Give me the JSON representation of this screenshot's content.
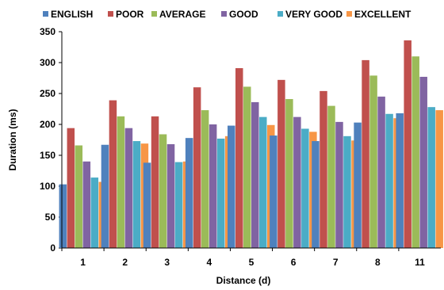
{
  "chart_data": {
    "type": "bar",
    "categories": [
      "1",
      "2",
      "3",
      "4",
      "5",
      "6",
      "7",
      "8",
      "11"
    ],
    "series": [
      {
        "name": "ENGLISH",
        "color": "#4F81BD",
        "values": [
          103,
          167,
          138,
          178,
          198,
          182,
          173,
          203,
          218
        ]
      },
      {
        "name": "POOR",
        "color": "#C0504D",
        "values": [
          194,
          239,
          213,
          260,
          291,
          272,
          254,
          304,
          336
        ]
      },
      {
        "name": "AVERAGE",
        "color": "#9BBB59",
        "values": [
          166,
          213,
          184,
          223,
          261,
          241,
          230,
          279,
          310
        ]
      },
      {
        "name": "GOOD",
        "color": "#8064A2",
        "values": [
          140,
          194,
          168,
          200,
          236,
          212,
          204,
          245,
          277
        ]
      },
      {
        "name": "VERY GOOD",
        "color": "#4BACC6",
        "values": [
          114,
          173,
          139,
          177,
          212,
          193,
          181,
          217,
          228
        ]
      },
      {
        "name": "EXCELLENT",
        "color": "#F79646",
        "values": [
          107,
          169,
          140,
          181,
          199,
          188,
          174,
          210,
          223
        ]
      }
    ],
    "yticks": [
      "0",
      "50",
      "100",
      "150",
      "200",
      "250",
      "300",
      "350"
    ],
    "xlabel": "Distance (d)",
    "ylabel": "Duration (ms)",
    "ylim": [
      0,
      350
    ],
    "legend": "top",
    "grid": false
  }
}
